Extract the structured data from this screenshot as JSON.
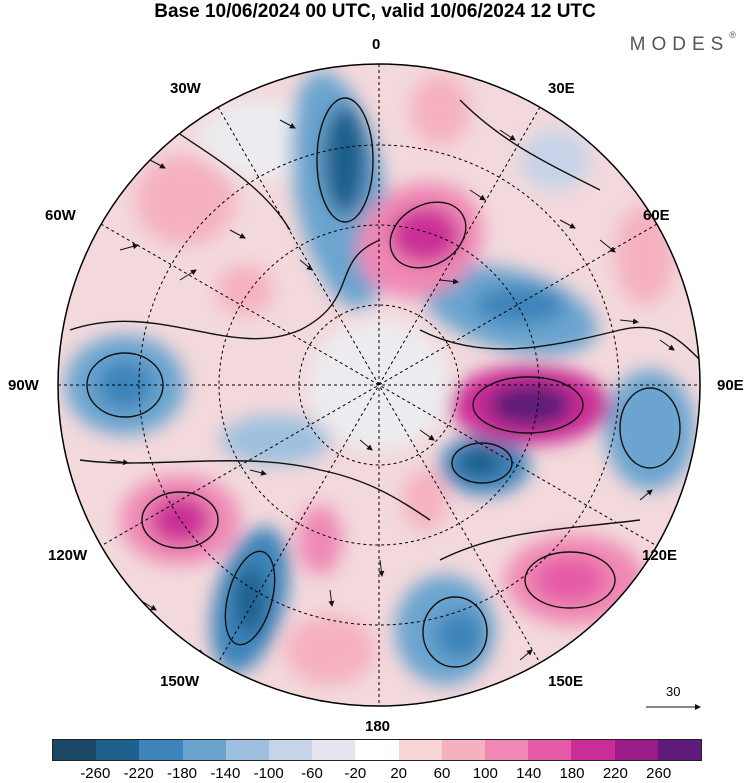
{
  "header": {
    "title": "Base 10/06/2024 00 UTC, valid 10/06/2024 12 UTC",
    "brand": "MODES",
    "brand_mark": "®"
  },
  "map": {
    "projection": "south polar stereographic",
    "longitude_labels": {
      "top": "0",
      "top_right": "30E",
      "right_upper": "60E",
      "right": "90E",
      "right_lower": "120E",
      "bottom_right": "150E",
      "bottom": "180",
      "bottom_left": "150W",
      "left_lower": "120W",
      "left": "90W",
      "left_upper": "60W",
      "top_left": "30W"
    },
    "reference_vector_label": "30"
  },
  "colorbar": {
    "colors": [
      "#1b4866",
      "#1f5f8b",
      "#3d84ba",
      "#6ba4cf",
      "#9ec0de",
      "#c6d3e8",
      "#e8e4f0",
      "#ffffff",
      "#f9d6d6",
      "#f5b1c0",
      "#ef88b4",
      "#e55aa6",
      "#cb2d96",
      "#9c1c8a",
      "#5e1b79"
    ],
    "ticks": [
      "-260",
      "-220",
      "-180",
      "-140",
      "-100",
      "-60",
      "-20",
      "20",
      "60",
      "100",
      "140",
      "180",
      "220",
      "260"
    ]
  }
}
